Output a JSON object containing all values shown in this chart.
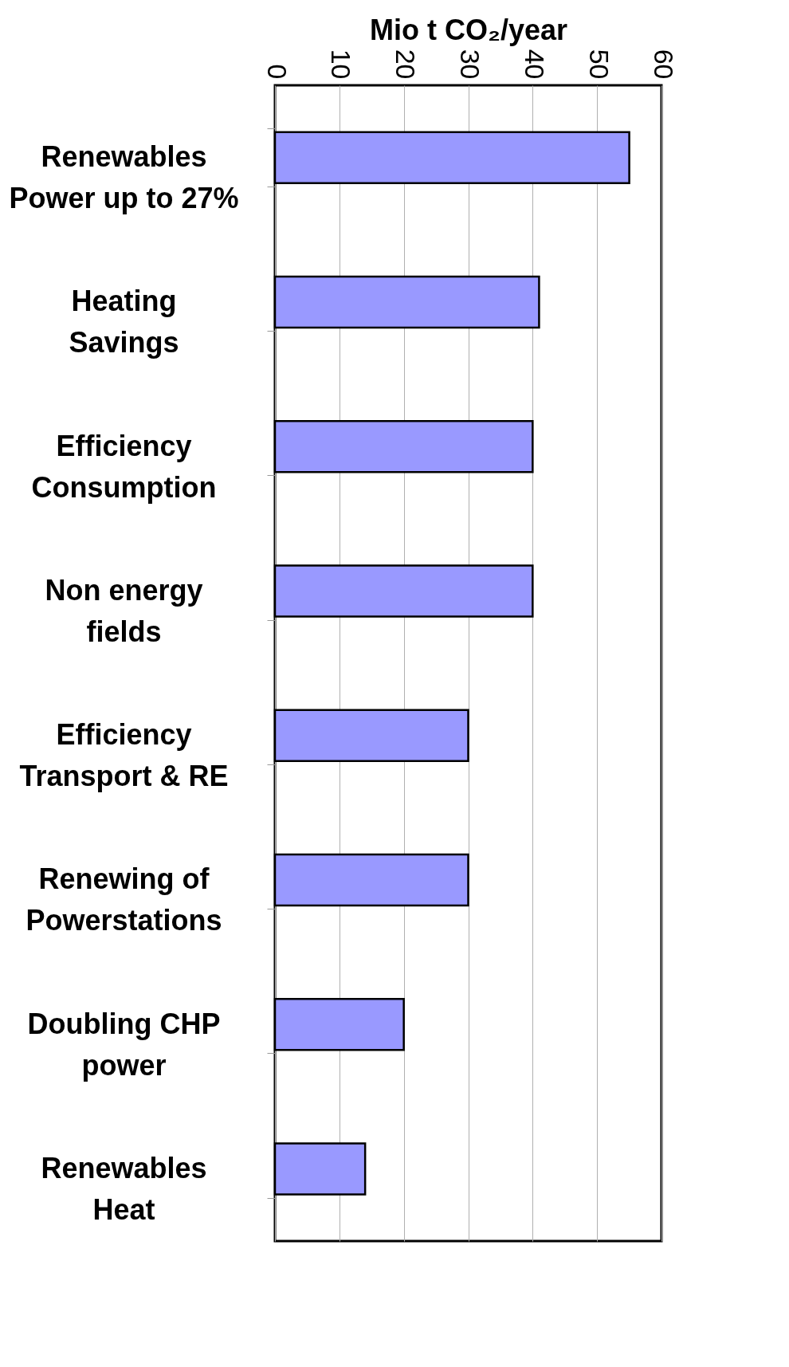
{
  "chart_data": {
    "type": "bar",
    "orientation": "horizontal",
    "xlabel": "Mio t CO₂/year",
    "categories": [
      "Renewables\nPower up to 27%",
      "Heating\nSavings",
      "Efficiency\nConsumption",
      "Non energy\nfields",
      "Efficiency\nTransport & RE",
      "Renewing of\nPowerstations",
      "Doubling CHP\npower",
      "Renewables\nHeat"
    ],
    "values": [
      55,
      41,
      40,
      40,
      30,
      30,
      20,
      14
    ],
    "color": "#9999ff",
    "xlim": [
      0,
      60
    ],
    "xticks": [
      0,
      10,
      20,
      30,
      40,
      50,
      60
    ],
    "grid": "x"
  }
}
